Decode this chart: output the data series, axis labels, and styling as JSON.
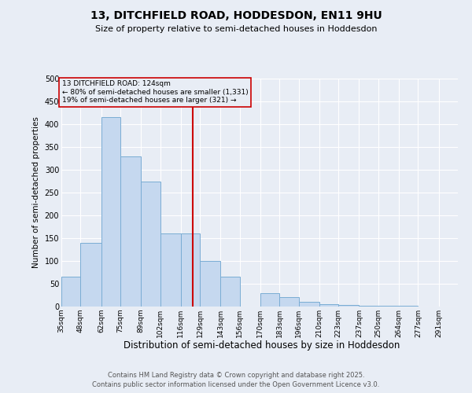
{
  "title": "13, DITCHFIELD ROAD, HODDESDON, EN11 9HU",
  "subtitle": "Size of property relative to semi-detached houses in Hoddesdon",
  "xlabel": "Distribution of semi-detached houses by size in Hoddesdon",
  "ylabel": "Number of semi-detached properties",
  "bin_edges": [
    35,
    48,
    62,
    75,
    89,
    102,
    116,
    129,
    143,
    156,
    170,
    183,
    196,
    210,
    223,
    237,
    250,
    264,
    277,
    291,
    304
  ],
  "bar_values": [
    65,
    140,
    415,
    330,
    275,
    160,
    160,
    100,
    65,
    0,
    30,
    20,
    10,
    5,
    3,
    2,
    1,
    1,
    0,
    0
  ],
  "bar_fill_color": "#c5d8ef",
  "bar_edge_color": "#7aadd4",
  "property_size": 124,
  "property_line_color": "#cc0000",
  "annotation_line1": "13 DITCHFIELD ROAD: 124sqm",
  "annotation_line2": "← 80% of semi-detached houses are smaller (1,331)",
  "annotation_line3": "19% of semi-detached houses are larger (321) →",
  "annotation_box_edgecolor": "#cc0000",
  "ylim": [
    0,
    500
  ],
  "yticks": [
    0,
    50,
    100,
    150,
    200,
    250,
    300,
    350,
    400,
    450,
    500
  ],
  "bg_color": "#e8edf5",
  "grid_color": "#ffffff",
  "footnote1": "Contains HM Land Registry data © Crown copyright and database right 2025.",
  "footnote2": "Contains public sector information licensed under the Open Government Licence v3.0."
}
